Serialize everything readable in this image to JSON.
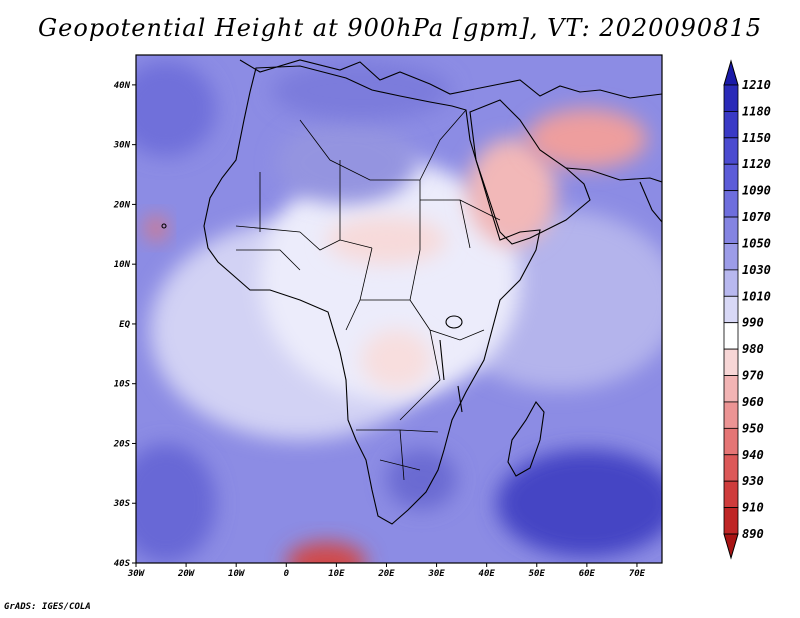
{
  "title": "Geopotential Height at 900hPa [gpm], VT: 2020090815",
  "credit": "GrADS: IGES/COLA",
  "map": {
    "variable": "Geopotential Height",
    "level": "900hPa",
    "units": "gpm",
    "valid_time": "2020090815",
    "lon_range": [
      -30,
      75
    ],
    "lat_range": [
      -40,
      45
    ],
    "lat_ticks": [
      {
        "value": 40,
        "label": "40N"
      },
      {
        "value": 30,
        "label": "30N"
      },
      {
        "value": 20,
        "label": "20N"
      },
      {
        "value": 10,
        "label": "10N"
      },
      {
        "value": 0,
        "label": "EQ"
      },
      {
        "value": -10,
        "label": "10S"
      },
      {
        "value": -20,
        "label": "20S"
      },
      {
        "value": -30,
        "label": "30S"
      },
      {
        "value": -40,
        "label": "40S"
      }
    ],
    "lon_ticks": [
      {
        "value": -30,
        "label": "30W"
      },
      {
        "value": -20,
        "label": "20W"
      },
      {
        "value": -10,
        "label": "10W"
      },
      {
        "value": 0,
        "label": "0"
      },
      {
        "value": 10,
        "label": "10E"
      },
      {
        "value": 20,
        "label": "20E"
      },
      {
        "value": 30,
        "label": "30E"
      },
      {
        "value": 40,
        "label": "40E"
      },
      {
        "value": 50,
        "label": "50E"
      },
      {
        "value": 60,
        "label": "60E"
      },
      {
        "value": 70,
        "label": "70E"
      }
    ]
  },
  "colorbar": {
    "labels": [
      "1210",
      "1180",
      "1150",
      "1120",
      "1090",
      "1070",
      "1050",
      "1030",
      "1010",
      "990",
      "980",
      "970",
      "960",
      "950",
      "940",
      "930",
      "910",
      "890"
    ],
    "colors": [
      "#1a1aa8",
      "#2a2ab8",
      "#3a3ac6",
      "#4b4bd0",
      "#5c5cd8",
      "#6e6edd",
      "#8484e2",
      "#9c9ce8",
      "#b8b8ef",
      "#d8d8f6",
      "#ffffff",
      "#f7d6d6",
      "#f2b4b4",
      "#ec9494",
      "#e57575",
      "#dc5858",
      "#cf3c3c",
      "#bf2626",
      "#a81414"
    ]
  },
  "fields": [
    {
      "name": "high-band-south-indian-ocean",
      "lon": 60,
      "lat": -30,
      "rx": 18,
      "ry": 9,
      "color": "#4444c4"
    },
    {
      "name": "high-band-south-atlantic",
      "lon": -24,
      "lat": -30,
      "rx": 10,
      "ry": 10,
      "color": "#6868d6"
    },
    {
      "name": "high-band-north-atlantic",
      "lon": -24,
      "lat": 36,
      "rx": 10,
      "ry": 8,
      "color": "#6f6fda"
    },
    {
      "name": "high-band-sahara",
      "lon": 12,
      "lat": 27,
      "rx": 14,
      "ry": 7,
      "color": "#9494e0"
    },
    {
      "name": "high-band-med",
      "lon": 15,
      "lat": 39,
      "rx": 18,
      "ry": 5,
      "color": "#7c7cdc"
    },
    {
      "name": "high-band-southern-africa",
      "lon": 27,
      "lat": -26,
      "rx": 7,
      "ry": 5,
      "color": "#6a6ad2"
    },
    {
      "name": "low-band-arabia",
      "lon": 45,
      "lat": 22,
      "rx": 9,
      "ry": 9,
      "color": "#f2b8b8"
    },
    {
      "name": "low-band-iran",
      "lon": 60,
      "lat": 31,
      "rx": 12,
      "ry": 5,
      "color": "#ee9e9e"
    },
    {
      "name": "low-band-sahel",
      "lon": 20,
      "lat": 14,
      "rx": 12,
      "ry": 4,
      "color": "#f7dada"
    },
    {
      "name": "low-band-central-africa",
      "lon": 22,
      "lat": -6,
      "rx": 7,
      "ry": 5,
      "color": "#f8dede"
    },
    {
      "name": "low-band-cape-verde",
      "lon": -26,
      "lat": 16,
      "rx": 2,
      "ry": 2,
      "color": "#e57575"
    },
    {
      "name": "low-band-south-ocean-low",
      "lon": 8,
      "lat": -40,
      "rx": 8,
      "ry": 3.5,
      "color": "#d04a4a"
    }
  ]
}
